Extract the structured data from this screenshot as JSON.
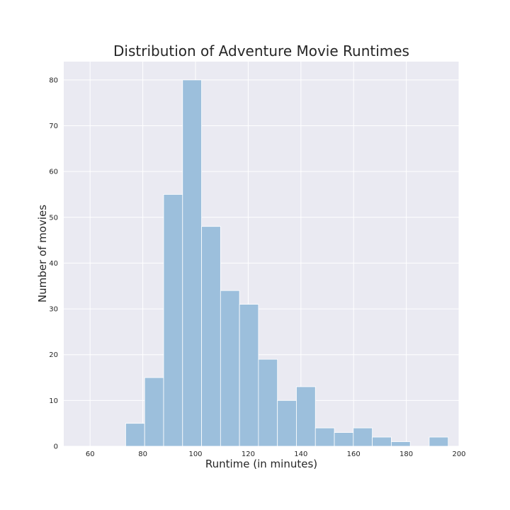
{
  "chart_data": {
    "type": "bar",
    "title": "Distribution of Adventure Movie Runtimes",
    "xlabel": "Runtime (in minutes)",
    "ylabel": "Number of movies",
    "xlim": [
      50,
      200
    ],
    "ylim": [
      0,
      84
    ],
    "x_ticks": [
      60,
      80,
      100,
      120,
      140,
      160,
      180,
      200
    ],
    "y_ticks": [
      0,
      10,
      20,
      30,
      40,
      50,
      60,
      70,
      80
    ],
    "grid": true,
    "bins": [
      {
        "start": 73.5,
        "end": 80.7,
        "count": 5
      },
      {
        "start": 80.7,
        "end": 87.9,
        "count": 15
      },
      {
        "start": 87.9,
        "end": 95.1,
        "count": 55
      },
      {
        "start": 95.1,
        "end": 102.3,
        "count": 80
      },
      {
        "start": 102.3,
        "end": 109.5,
        "count": 48
      },
      {
        "start": 109.5,
        "end": 116.7,
        "count": 34
      },
      {
        "start": 116.7,
        "end": 123.9,
        "count": 31
      },
      {
        "start": 123.9,
        "end": 131.1,
        "count": 19
      },
      {
        "start": 131.1,
        "end": 138.3,
        "count": 10
      },
      {
        "start": 138.3,
        "end": 145.5,
        "count": 13
      },
      {
        "start": 145.5,
        "end": 152.7,
        "count": 4
      },
      {
        "start": 152.7,
        "end": 159.9,
        "count": 3
      },
      {
        "start": 159.9,
        "end": 167.1,
        "count": 4
      },
      {
        "start": 167.1,
        "end": 174.3,
        "count": 2
      },
      {
        "start": 174.3,
        "end": 181.5,
        "count": 1
      },
      {
        "start": 181.5,
        "end": 188.7,
        "count": 0
      },
      {
        "start": 188.7,
        "end": 195.9,
        "count": 2
      }
    ],
    "colors": {
      "bar": "#9cbfdc",
      "bar_edge": "#ffffff",
      "background": "#eaeaf2",
      "grid": "#ffffff",
      "text": "#262626"
    }
  }
}
